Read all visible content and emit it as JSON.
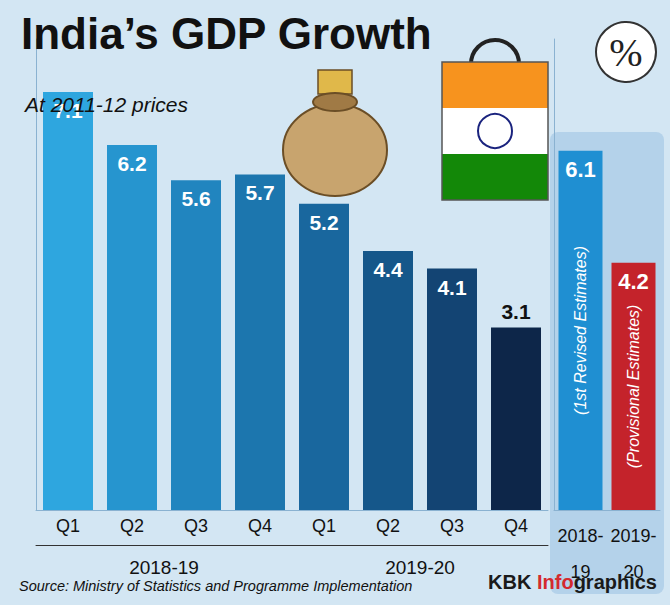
{
  "title": "India’s GDP Growth",
  "subtitle": "At 2011-12 prices",
  "unit": "%",
  "source": "Source: Ministry of Statistics and Programme Implementation",
  "credit": [
    {
      "text": "KBK ",
      "color": "#1a1a1a"
    },
    {
      "text": "Info",
      "color": "#d42a2f"
    },
    {
      "text": "graphics",
      "color": "#1a1a1a"
    }
  ],
  "chart_data": [
    {
      "type": "bar",
      "categories": [
        "Q1",
        "Q2",
        "Q3",
        "Q4",
        "Q1",
        "Q2",
        "Q3",
        "Q4"
      ],
      "category_groups": [
        {
          "label": "2018-19",
          "span": 4
        },
        {
          "label": "2019-20",
          "span": 4
        }
      ],
      "values": [
        7.1,
        6.2,
        5.6,
        5.7,
        5.2,
        4.4,
        4.1,
        3.1
      ],
      "colors": [
        "#2ea6df",
        "#2695cf",
        "#2185bf",
        "#1c76ae",
        "#19679e",
        "#15578a",
        "#134473",
        "#0d2649"
      ],
      "ylim": [
        0,
        8
      ],
      "grid": false,
      "data_labels": true,
      "tick_labels": "x"
    },
    {
      "type": "bar",
      "categories": [
        "2018-19",
        "2019-20"
      ],
      "values": [
        6.1,
        4.2
      ],
      "colors": [
        "#1f8fd2",
        "#c4232b"
      ],
      "annotations": [
        "(1st Revised Estimates)",
        "(Provisional Estimates)"
      ],
      "ylim": [
        0,
        8
      ],
      "grid": false,
      "data_labels": true,
      "tick_labels": "x"
    }
  ]
}
